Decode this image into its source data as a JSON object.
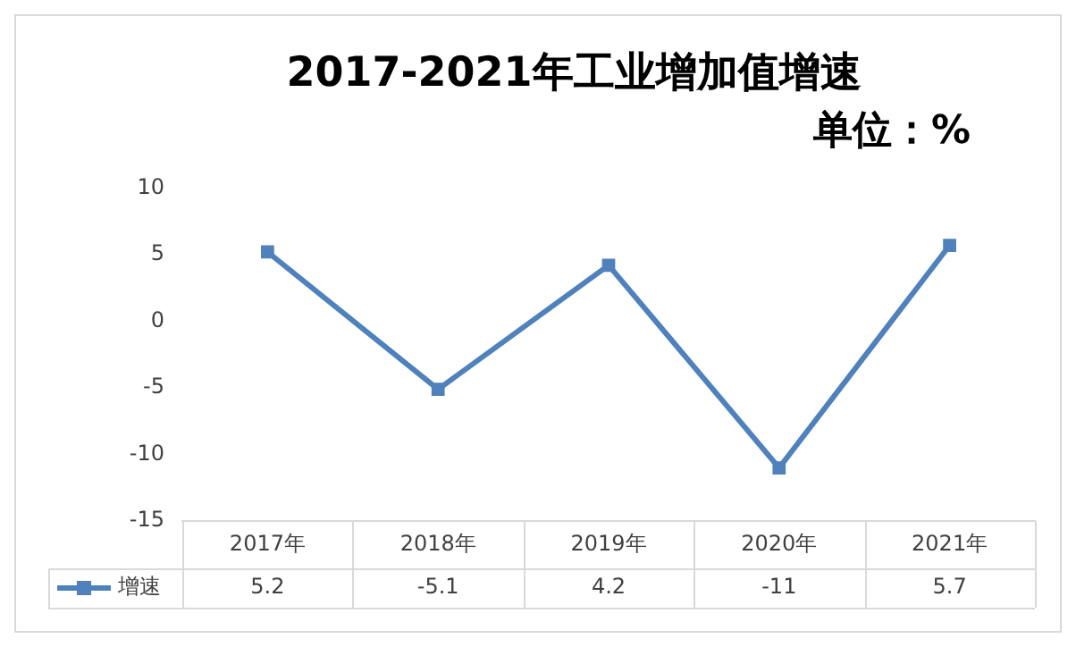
{
  "chart_data": {
    "type": "line",
    "title": "2017-2021年工业增加值增速",
    "subtitle": "单位：%",
    "categories": [
      "2017年",
      "2018年",
      "2019年",
      "2020年",
      "2021年"
    ],
    "series": [
      {
        "name": "增速",
        "color": "#4f81bd",
        "values": [
          5.2,
          -5.1,
          4.2,
          -11,
          5.7
        ]
      }
    ],
    "ylim": [
      -15,
      10
    ],
    "yticks": [
      -15,
      -10,
      -5,
      0,
      5,
      10
    ],
    "grid": false,
    "legend": "bottom",
    "marker": "square",
    "line_style": "solid",
    "data_labels": true
  }
}
